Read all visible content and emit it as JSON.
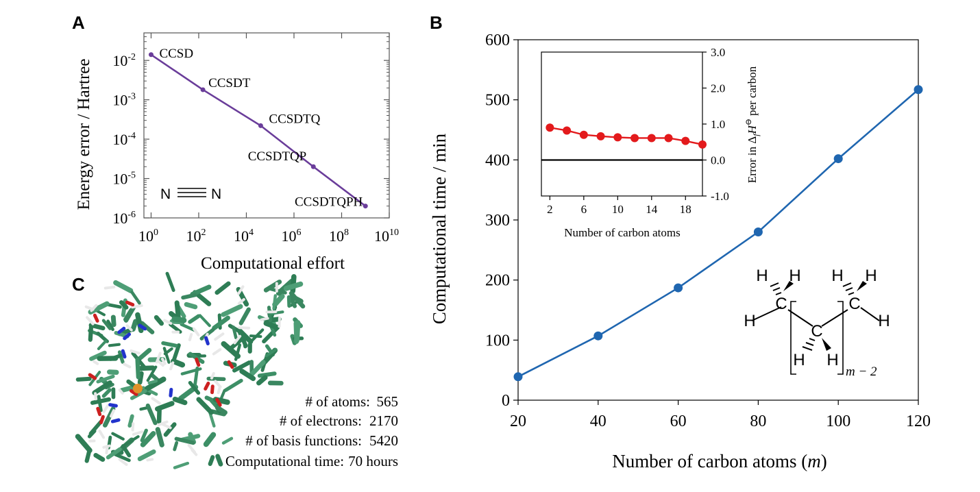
{
  "panels": {
    "a": "A",
    "b": "B",
    "c": "C"
  },
  "chart_data": [
    {
      "type": "line",
      "panel": "A",
      "xlabel": "Computational effort",
      "ylabel": "Energy error / Hartree",
      "x_scale": "log",
      "y_scale": "log",
      "xlim": [
        0.5,
        10000000000
      ],
      "ylim": [
        1e-06,
        0.05
      ],
      "x_ticks": [
        {
          "value": 1,
          "base": "10",
          "exp": "0"
        },
        {
          "value": 100,
          "base": "10",
          "exp": "2"
        },
        {
          "value": 10000,
          "base": "10",
          "exp": "4"
        },
        {
          "value": 1000000,
          "base": "10",
          "exp": "6"
        },
        {
          "value": 100000000,
          "base": "10",
          "exp": "8"
        },
        {
          "value": 10000000000,
          "base": "10",
          "exp": "10"
        }
      ],
      "y_ticks": [
        {
          "value": 0.01,
          "base": "10",
          "exp": "-2"
        },
        {
          "value": 0.001,
          "base": "10",
          "exp": "-3"
        },
        {
          "value": 0.0001,
          "base": "10",
          "exp": "-4"
        },
        {
          "value": 1e-05,
          "base": "10",
          "exp": "-5"
        },
        {
          "value": 1e-06,
          "base": "10",
          "exp": "-6"
        }
      ],
      "color": "#6a3d9a",
      "points": [
        {
          "label": "CCSD",
          "x": 1,
          "y": 0.014
        },
        {
          "label": "CCSDT",
          "x": 150,
          "y": 0.0018
        },
        {
          "label": "CCSDTQ",
          "x": 40000,
          "y": 0.00022
        },
        {
          "label": "CCSDTQP",
          "x": 6500000,
          "y": 2e-05
        },
        {
          "label": "CCSDTQPH",
          "x": 1000000000,
          "y": 2e-06
        }
      ],
      "molecule": {
        "left": "N",
        "right": "N"
      }
    },
    {
      "type": "line",
      "panel": "B",
      "xlabel": "Number of carbon atoms (",
      "xlabel_var": "m",
      "xlabel_close": ")",
      "ylabel": "Computational time / min",
      "xlim": [
        20,
        120
      ],
      "ylim": [
        0,
        600
      ],
      "x_ticks": [
        20,
        40,
        60,
        80,
        100,
        120
      ],
      "y_ticks": [
        0,
        100,
        200,
        300,
        400,
        500,
        600
      ],
      "color": "#1f66b0",
      "x": [
        20,
        40,
        60,
        80,
        100,
        120
      ],
      "y": [
        39,
        107,
        187,
        280,
        402,
        517
      ],
      "structure": {
        "atoms": [
          "H",
          "H",
          "C",
          "H",
          "H",
          "H",
          "C",
          "H",
          "H",
          "H",
          "C",
          "H"
        ],
        "repeat_label": "m − 2"
      }
    },
    {
      "type": "line",
      "panel": "B-inset",
      "xlabel": "Number of carbon atoms",
      "ylabel_text": "Error in Δ",
      "ylabel_sub": "f",
      "ylabel_var": "H",
      "ylabel_sup": "⊖",
      "ylabel_tail": "per carbon",
      "xlim": [
        1,
        20
      ],
      "ylim": [
        -1,
        3
      ],
      "x_ticks": [
        2,
        6,
        10,
        14,
        18
      ],
      "y_ticks": [
        "-1.0",
        "0.0",
        "1.0",
        "2.0",
        "3.0"
      ],
      "color": "#e31a1c",
      "x": [
        2,
        4,
        6,
        8,
        10,
        12,
        14,
        16,
        18,
        20
      ],
      "y": [
        0.9,
        0.82,
        0.7,
        0.66,
        0.63,
        0.61,
        0.61,
        0.61,
        0.53,
        0.43
      ],
      "baseline": 0
    }
  ],
  "panel_c": {
    "stats": [
      {
        "label": "# of atoms:",
        "value": "565"
      },
      {
        "label": "# of electrons:",
        "value": "2170"
      },
      {
        "label": "# of basis functions:",
        "value": "5420"
      }
    ],
    "time_label": "Computational time:",
    "time_value": "70 hours"
  }
}
